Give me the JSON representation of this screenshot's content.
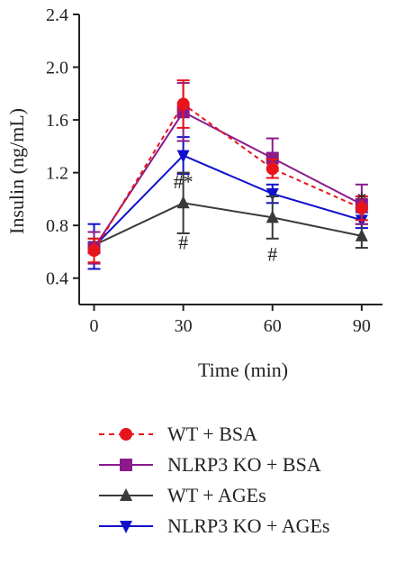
{
  "chart_data": {
    "type": "line",
    "xlabel": "Time (min)",
    "ylabel": "Insulin (ng/mL)",
    "x": [
      0,
      30,
      60,
      90
    ],
    "x_ticks": [
      "0",
      "30",
      "60",
      "90"
    ],
    "y_ticks": [
      "0.4",
      "0.8",
      "1.2",
      "1.6",
      "2.0",
      "2.4"
    ],
    "xlim": [
      -5,
      97
    ],
    "ylim": [
      0.2,
      2.4
    ],
    "grid": false,
    "legend_position": "bottom",
    "series": [
      {
        "name": "WT + BSA",
        "values": [
          0.61,
          1.72,
          1.23,
          0.93
        ],
        "errors": [
          0.09,
          0.18,
          0.07,
          0.09
        ],
        "color": "#e8141b",
        "marker": "circle",
        "dashed": true
      },
      {
        "name": "NLRP3 KO + BSA",
        "values": [
          0.63,
          1.66,
          1.31,
          0.96
        ],
        "errors": [
          0.12,
          0.22,
          0.15,
          0.15
        ],
        "color": "#8b1a8b",
        "marker": "square",
        "dashed": false
      },
      {
        "name": "WT + AGEs",
        "values": [
          0.65,
          0.97,
          0.86,
          0.72
        ],
        "errors": [
          0.05,
          0.23,
          0.16,
          0.09
        ],
        "color": "#3a3a3a",
        "marker": "triangle-up",
        "dashed": false
      },
      {
        "name": "NLRP3 KO + AGEs",
        "values": [
          0.64,
          1.33,
          1.04,
          0.84
        ],
        "errors": [
          0.17,
          0.14,
          0.07,
          0.06
        ],
        "color": "#1010cc",
        "marker": "triangle-down",
        "dashed": false
      }
    ],
    "annotations": [
      {
        "text": "#*",
        "x": 30,
        "y": 1.08
      },
      {
        "text": "#",
        "x": 30,
        "y": 0.62
      },
      {
        "text": "#",
        "x": 60,
        "y": 0.53
      },
      {
        "text": "*",
        "x": 90,
        "y": 0.95
      }
    ]
  }
}
